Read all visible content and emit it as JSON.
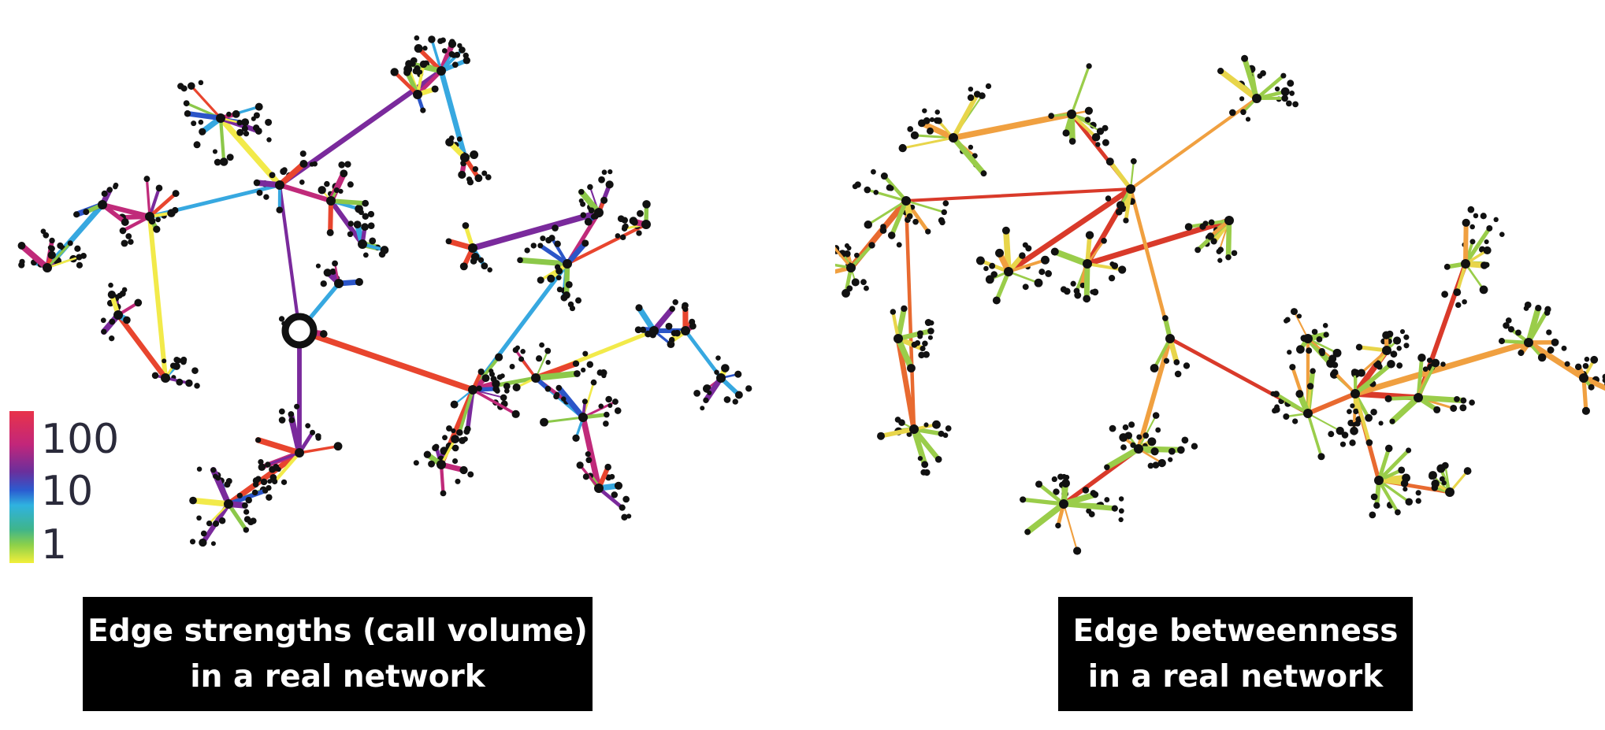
{
  "left": {
    "caption_line1": "Edge strengths (call volume)",
    "caption_line2": "in a real network",
    "colorbar": {
      "tick_labels": [
        "100",
        "10",
        "1"
      ],
      "colors": [
        "#e8334a",
        "#c2267a",
        "#6a2f9c",
        "#2b5bd0",
        "#2fb2e0",
        "#3fb58a",
        "#8cd04a",
        "#f2ef3a"
      ]
    },
    "edge_colors": [
      "#f2ea4a",
      "#8cc84a",
      "#37a8e0",
      "#2b55c8",
      "#7a2a9c",
      "#c02a7a",
      "#e8452e"
    ]
  },
  "right": {
    "caption_line1": "Edge betweenness",
    "caption_line2": "in a real network",
    "edge_colors": [
      "#9acd4a",
      "#e8d54a",
      "#f0a040",
      "#e86a30",
      "#d93a2a",
      "#37a8e0"
    ]
  },
  "node_color": "#111111"
}
